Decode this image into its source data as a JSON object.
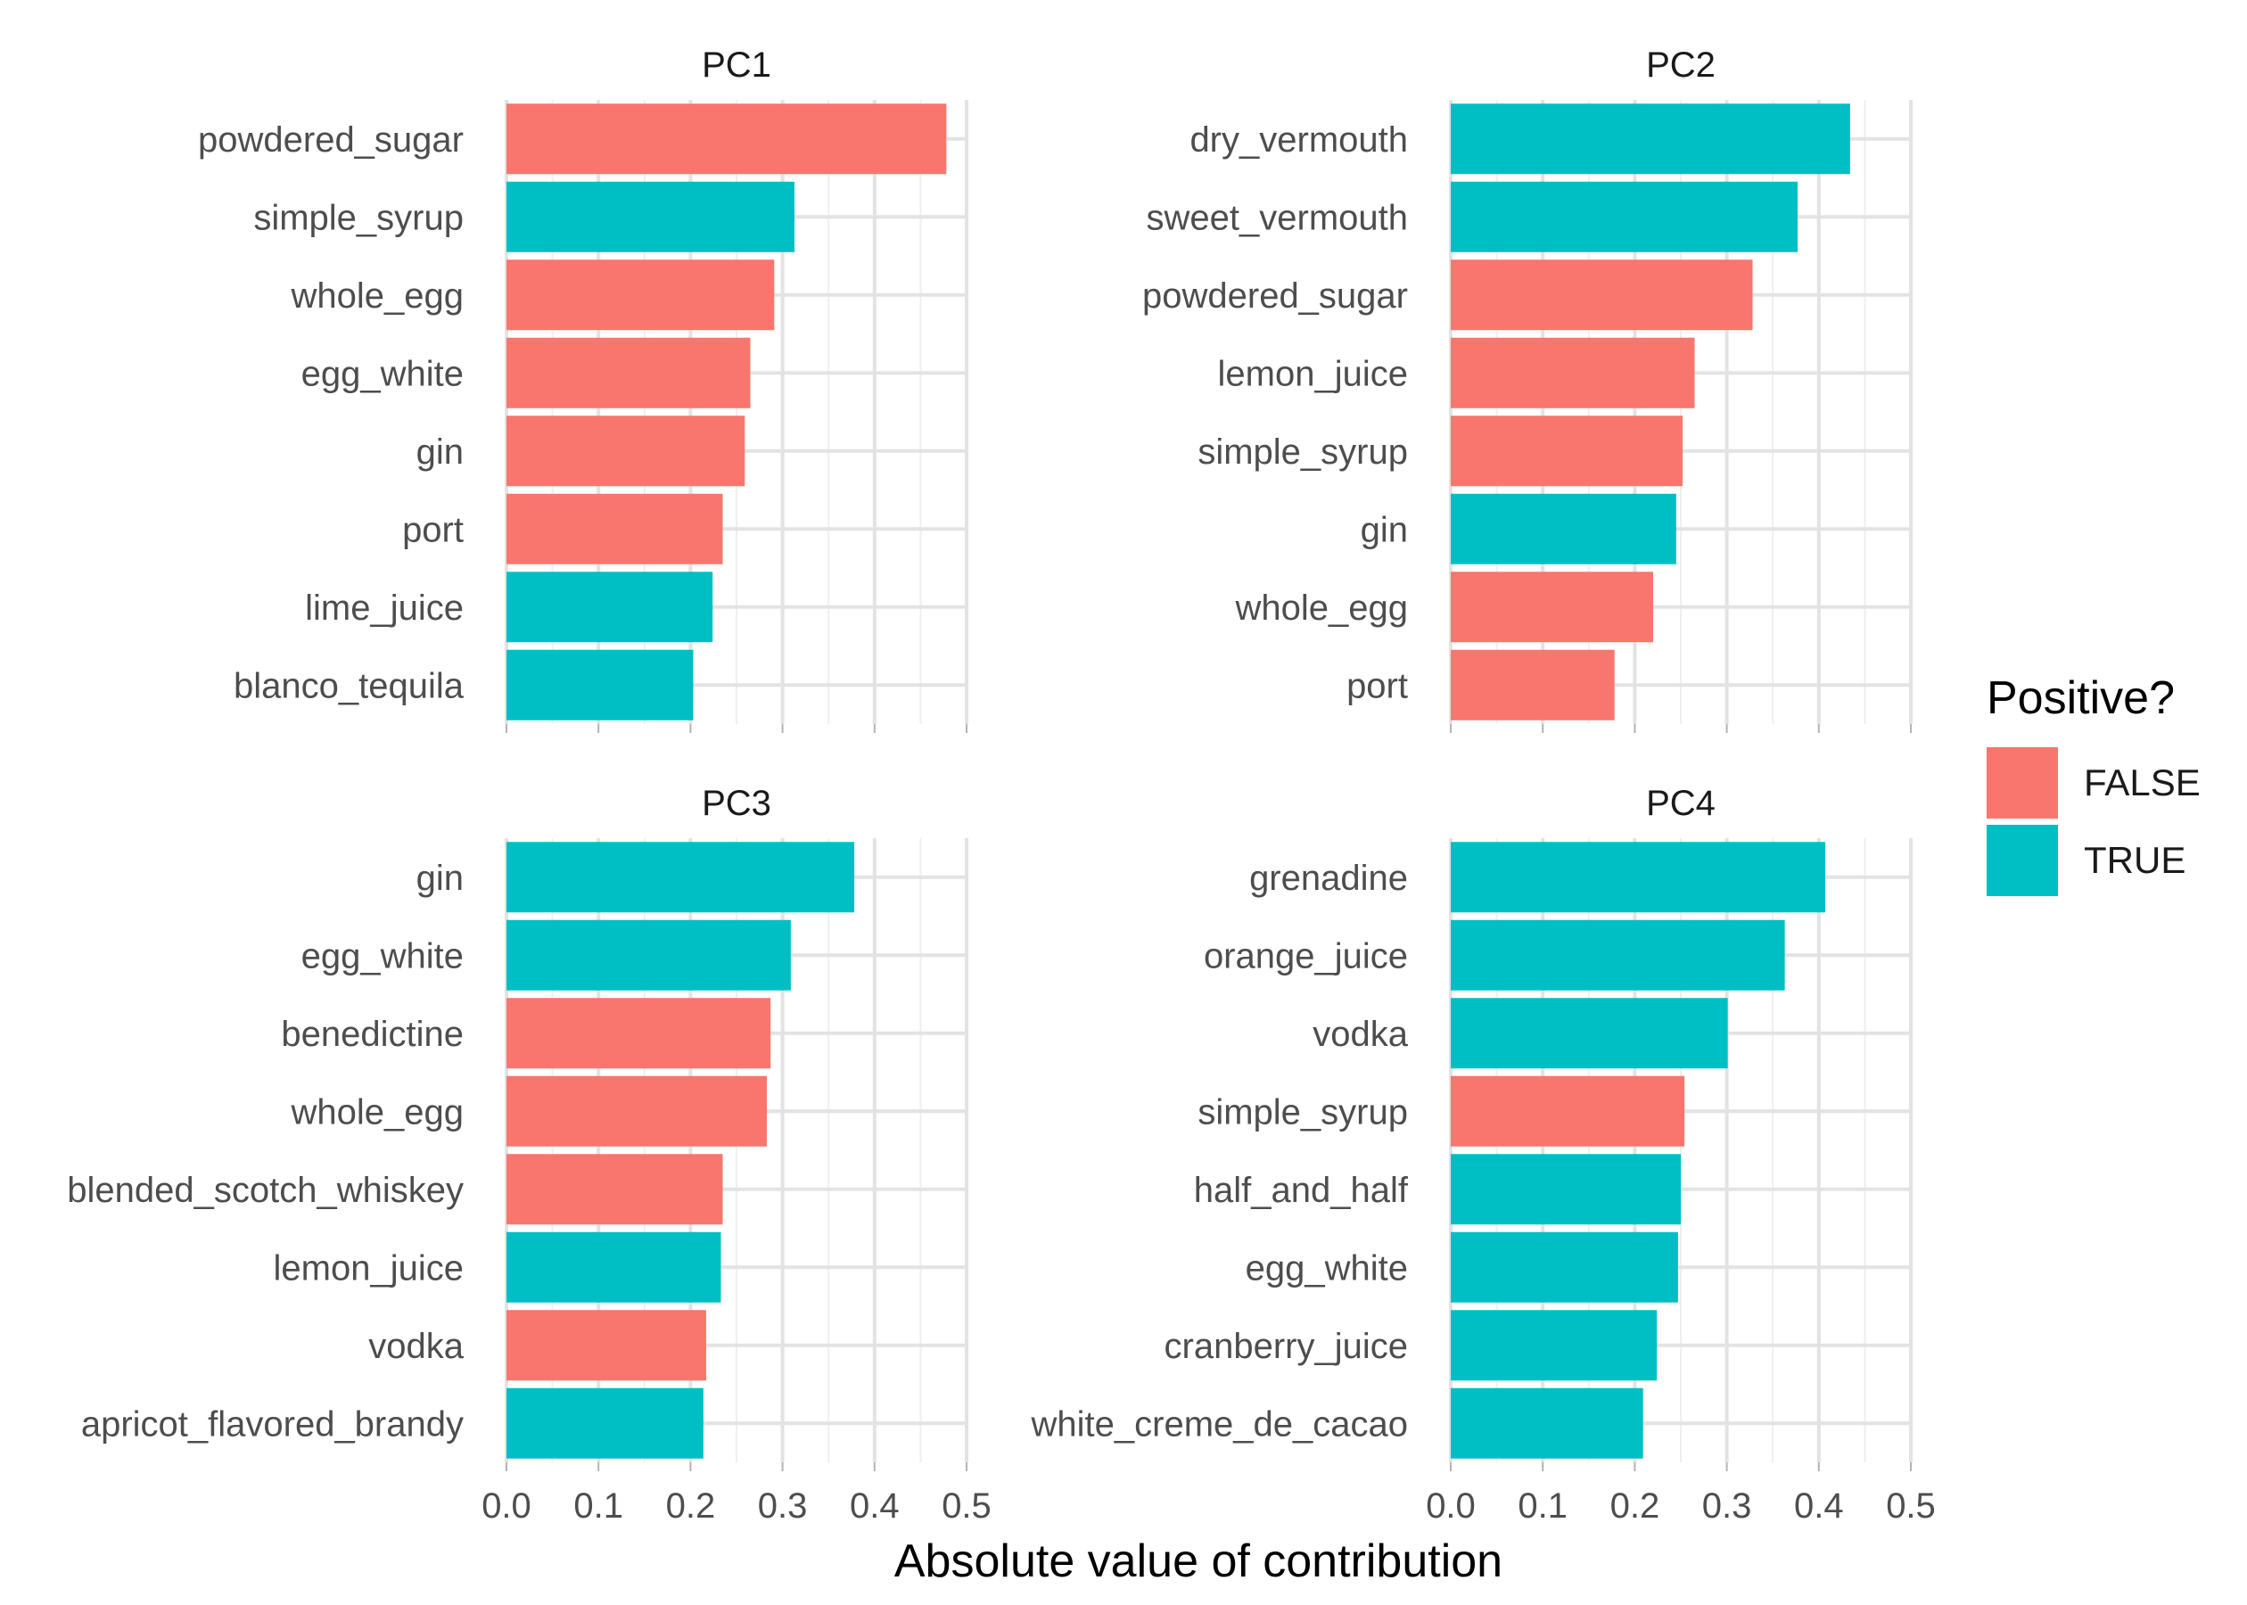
{
  "chart_data": {
    "type": "bar",
    "orientation": "horizontal",
    "xlabel": "Absolute value of contribution",
    "xlim": [
      0,
      0.5
    ],
    "x_ticks": [
      "0.0",
      "0.1",
      "0.2",
      "0.3",
      "0.4",
      "0.5"
    ],
    "x_tick_values": [
      0,
      0.1,
      0.2,
      0.3,
      0.4,
      0.5
    ],
    "grid": true,
    "legend": {
      "title": "Positive?",
      "placement": "right",
      "entries": [
        {
          "label": "FALSE",
          "color": "#F8766D"
        },
        {
          "label": "TRUE",
          "color": "#00BFC4"
        }
      ]
    },
    "panels": [
      {
        "title": "PC1",
        "categories": [
          "powdered_sugar",
          "simple_syrup",
          "whole_egg",
          "egg_white",
          "gin",
          "port",
          "lime_juice",
          "blanco_tequila"
        ],
        "values": [
          0.478,
          0.313,
          0.291,
          0.265,
          0.259,
          0.235,
          0.224,
          0.203
        ],
        "positive": [
          "FALSE",
          "TRUE",
          "FALSE",
          "FALSE",
          "FALSE",
          "FALSE",
          "TRUE",
          "TRUE"
        ]
      },
      {
        "title": "PC2",
        "categories": [
          "dry_vermouth",
          "sweet_vermouth",
          "powdered_sugar",
          "lemon_juice",
          "simple_syrup",
          "gin",
          "whole_egg",
          "port"
        ],
        "values": [
          0.434,
          0.377,
          0.328,
          0.265,
          0.252,
          0.245,
          0.22,
          0.178
        ],
        "positive": [
          "TRUE",
          "TRUE",
          "FALSE",
          "FALSE",
          "FALSE",
          "TRUE",
          "FALSE",
          "FALSE"
        ]
      },
      {
        "title": "PC3",
        "categories": [
          "gin",
          "egg_white",
          "benedictine",
          "whole_egg",
          "blended_scotch_whiskey",
          "lemon_juice",
          "vodka",
          "apricot_flavored_brandy"
        ],
        "values": [
          0.378,
          0.309,
          0.287,
          0.283,
          0.235,
          0.233,
          0.217,
          0.214
        ],
        "positive": [
          "TRUE",
          "TRUE",
          "FALSE",
          "FALSE",
          "FALSE",
          "TRUE",
          "FALSE",
          "TRUE"
        ]
      },
      {
        "title": "PC4",
        "categories": [
          "grenadine",
          "orange_juice",
          "vodka",
          "simple_syrup",
          "half_and_half",
          "egg_white",
          "cranberry_juice",
          "white_creme_de_cacao"
        ],
        "values": [
          0.407,
          0.363,
          0.301,
          0.254,
          0.25,
          0.247,
          0.224,
          0.209
        ],
        "positive": [
          "TRUE",
          "TRUE",
          "TRUE",
          "FALSE",
          "TRUE",
          "TRUE",
          "TRUE",
          "TRUE"
        ]
      }
    ]
  }
}
